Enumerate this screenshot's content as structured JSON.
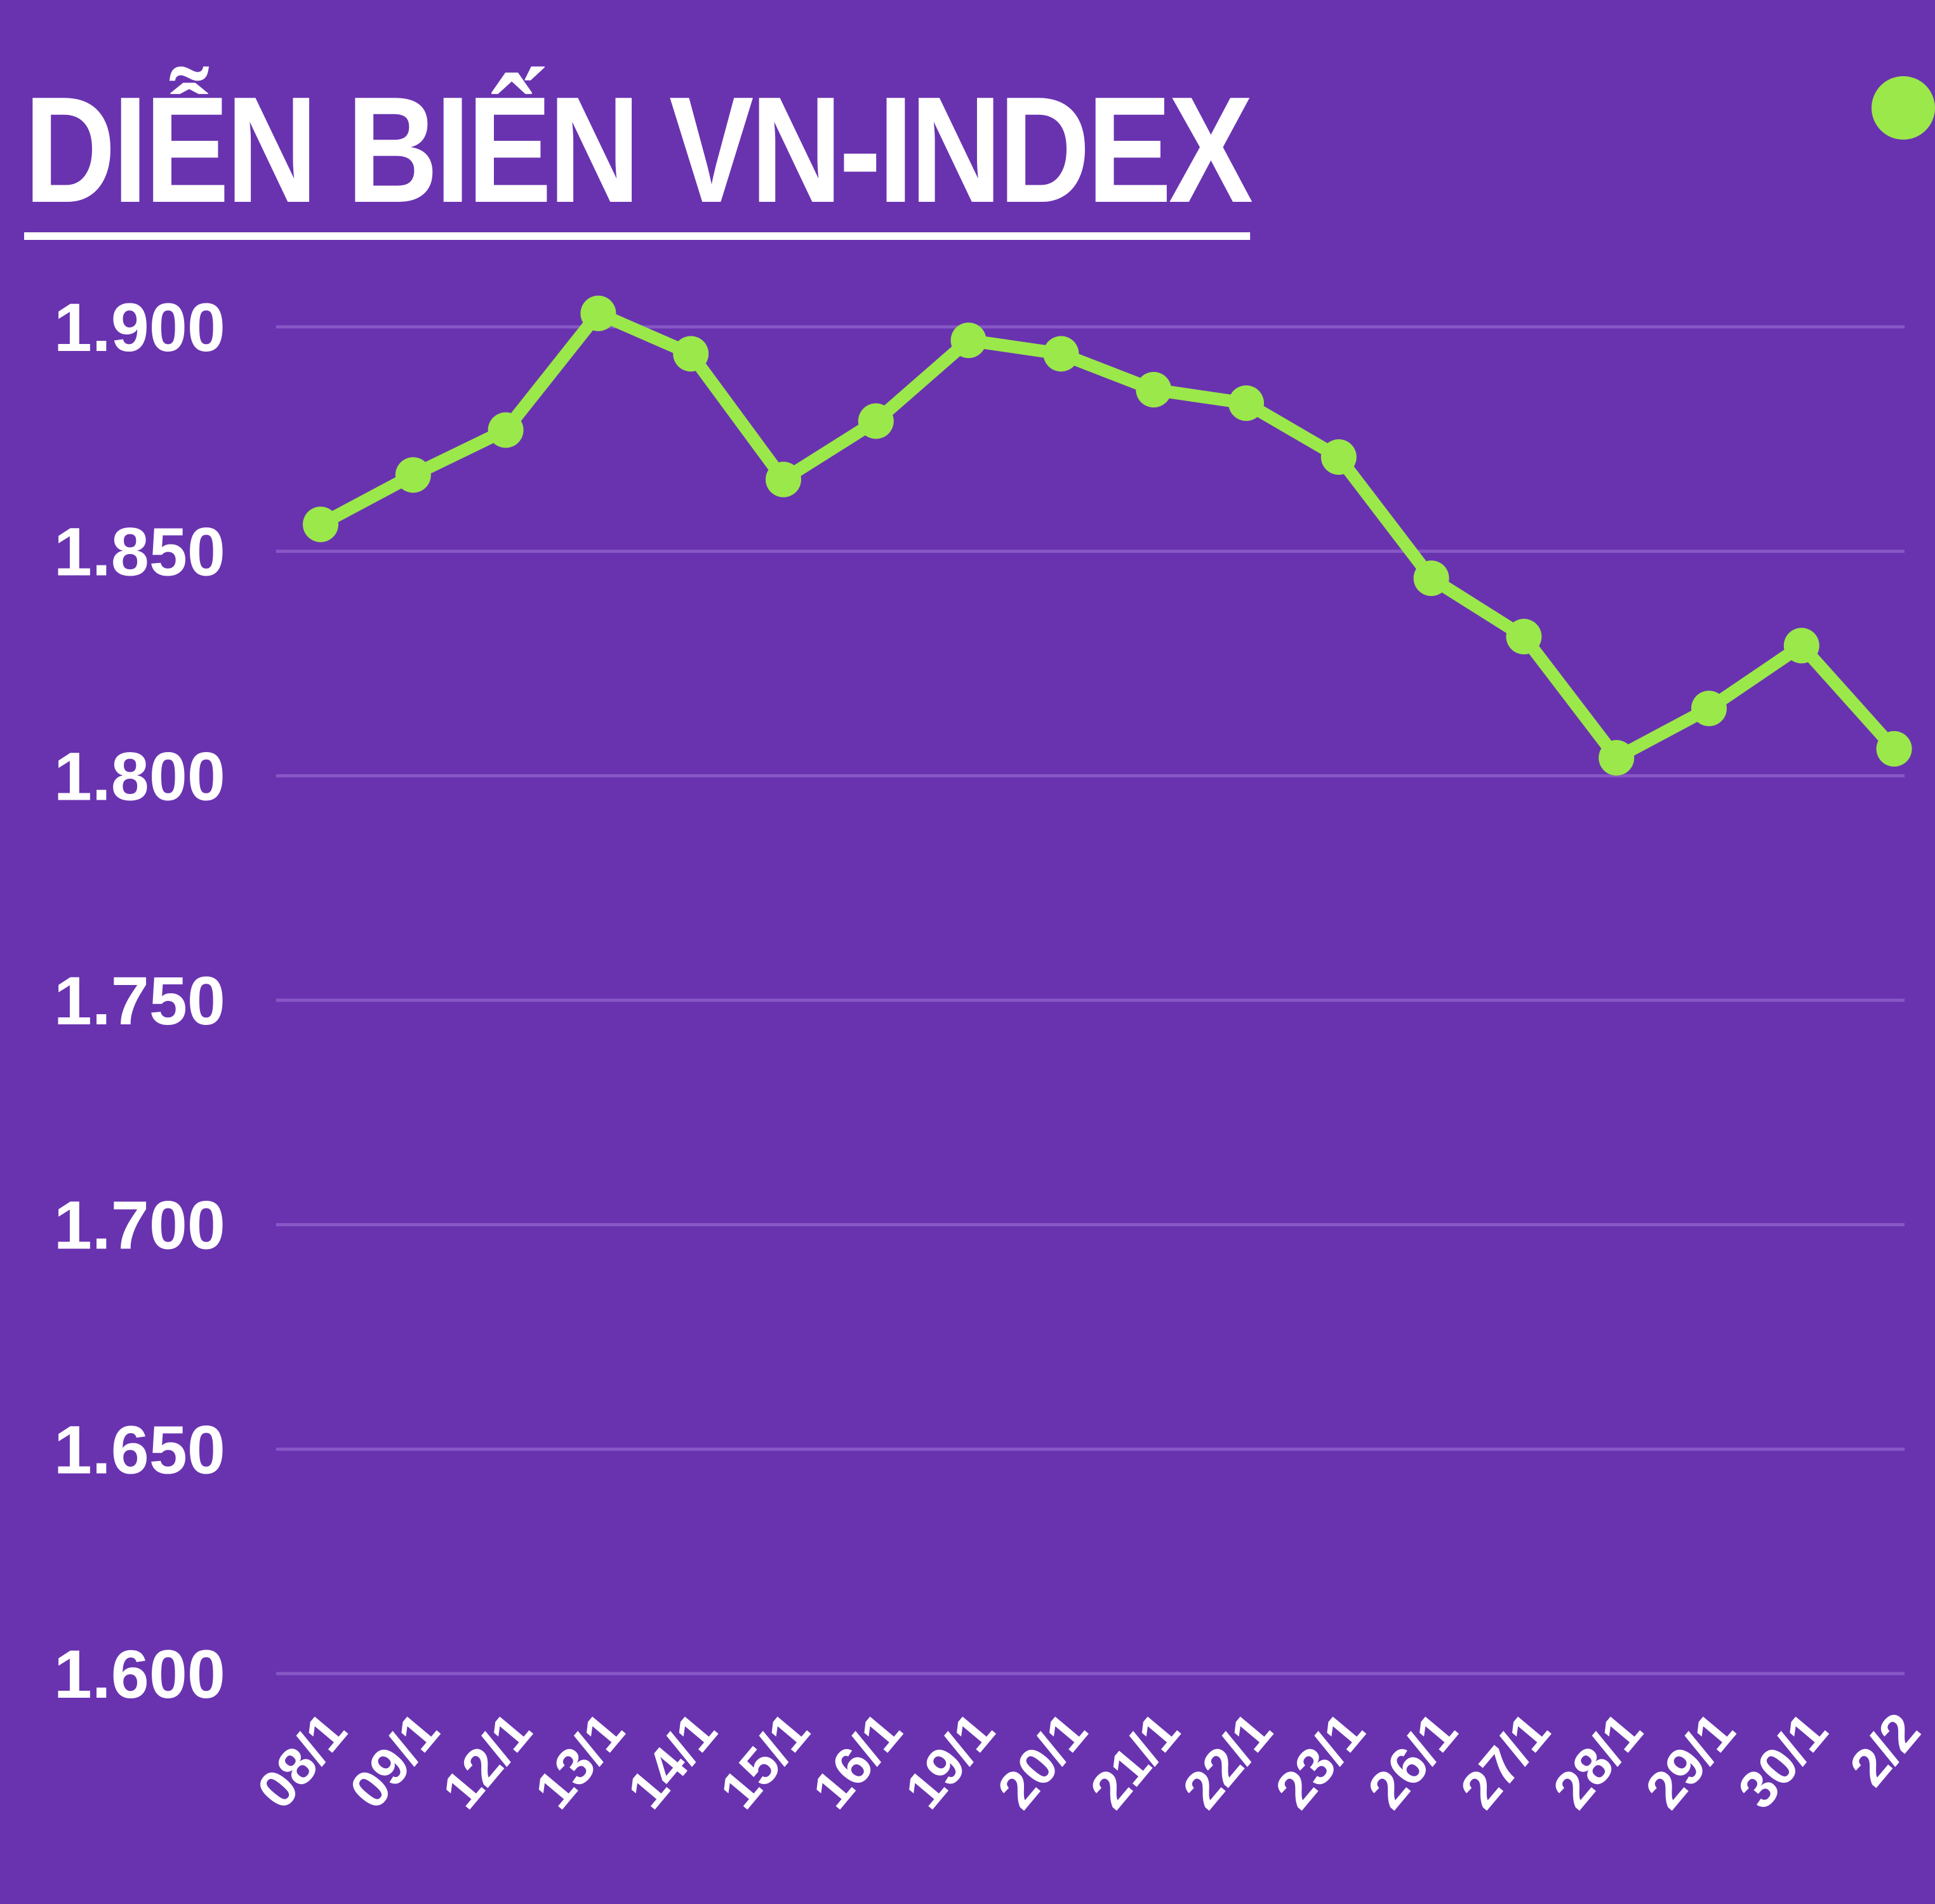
{
  "colors": {
    "background": "#6933b0",
    "line": "#9be84a",
    "grid": "#8757c6",
    "text": "#ffffff"
  },
  "chart_data": {
    "type": "line",
    "title": "DIỄN BIẾN VN-INDEX",
    "categories": [
      "08/1",
      "09/1",
      "12/1",
      "13/1",
      "14/1",
      "15/1",
      "16/1",
      "19/1",
      "20/1",
      "21/1",
      "22/1",
      "23/1",
      "26/1",
      "27/1",
      "28/1",
      "29/1",
      "30/1",
      "2/2"
    ],
    "series": [
      {
        "values": [
          1856,
          1867,
          1877,
          1903,
          1894,
          1866,
          1879,
          1897,
          1894,
          1886,
          1883,
          1871,
          1844,
          1831,
          1804,
          1815,
          1829,
          1806
        ]
      }
    ],
    "yticks": [
      "1.600",
      "1.650",
      "1.700",
      "1.750",
      "1.800",
      "1.850",
      "1.900"
    ],
    "ylim": [
      1600,
      1900
    ],
    "grid": true,
    "legend": "top-right"
  }
}
